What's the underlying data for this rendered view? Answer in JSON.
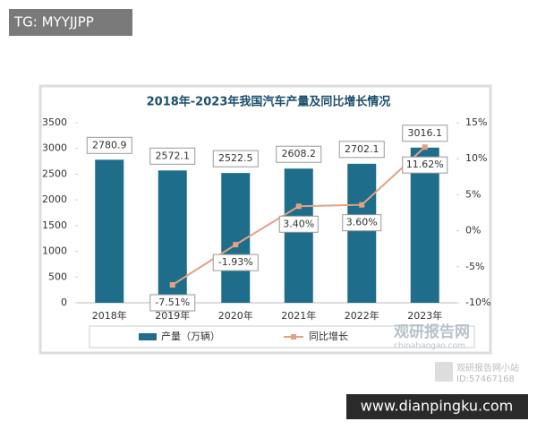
{
  "watermark_top": "TG: MYYJJPP",
  "watermark_bottom": "www.dianpingku.com",
  "source_logo": "观研报告网",
  "source_url": "chinabaogao.com",
  "source_station": "观研报告网小站",
  "source_id": "ID:57467168",
  "chart_data": {
    "type": "bar",
    "title": "2018年-2023年我国汽车产量及同比增长情况",
    "categories": [
      "2018年",
      "2019年",
      "2020年",
      "2021年",
      "2022年",
      "2023年"
    ],
    "series": [
      {
        "name": "产量（万辆）",
        "type": "bar",
        "color": "#1d6d8b",
        "values": [
          2780.9,
          2572.1,
          2522.5,
          2608.2,
          2702.1,
          3016.1
        ]
      },
      {
        "name": "同比增长",
        "type": "line",
        "axis": "y2",
        "color": "#e3a284",
        "values": [
          null,
          -7.51,
          -1.93,
          3.4,
          3.6,
          11.62
        ],
        "value_labels": [
          null,
          "-7.51%",
          "-1.93%",
          "3.40%",
          "3.60%",
          "11.62%"
        ]
      }
    ],
    "ylim": [
      0,
      3500
    ],
    "yticks": [
      0,
      500,
      1000,
      1500,
      2000,
      2500,
      3000,
      3500
    ],
    "y2lim": [
      -10,
      15
    ],
    "y2ticks": [
      {
        "value": -10,
        "label": "-10%"
      },
      {
        "value": -5,
        "label": "-5%"
      },
      {
        "value": 0,
        "label": "0%"
      },
      {
        "value": 5,
        "label": "5%"
      },
      {
        "value": 10,
        "label": "10%"
      },
      {
        "value": 15,
        "label": "15%"
      }
    ]
  }
}
